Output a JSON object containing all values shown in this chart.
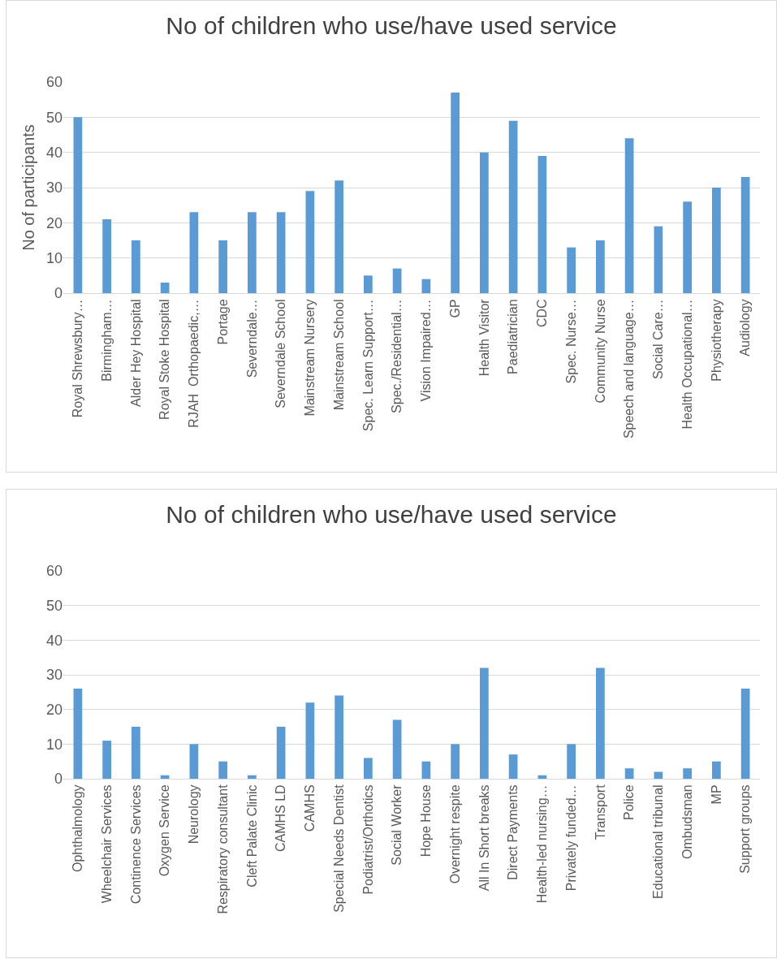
{
  "chart_data": [
    {
      "type": "bar",
      "title": "No of children who use/have used service",
      "ylabel": "No of participants",
      "categories": [
        "Royal Shrewsbury…",
        "Birmingham…",
        "Alder Hey Hospital",
        "Royal Stoke Hospital",
        "RJAH  Orthopaedic,…",
        "Portage",
        "Severndale…",
        "Severndale School",
        "Mainstream Nursery",
        "Mainstream School",
        "Spec. Learn Support…",
        "Spec./Residential…",
        "Vision Impaired…",
        "GP",
        "Health Visitor",
        "Paediatrician",
        "CDC",
        "Spec. Nurse…",
        "Community Nurse",
        "Speech and language…",
        "Social Care…",
        "Health Occupational…",
        "Physiotherapy",
        "Audiology"
      ],
      "values": [
        50,
        21,
        15,
        3,
        23,
        15,
        23,
        23,
        29,
        32,
        5,
        7,
        4,
        57,
        40,
        49,
        39,
        13,
        15,
        44,
        19,
        26,
        30,
        33
      ],
      "color": "#5b9bd5",
      "ylim": [
        0,
        60
      ],
      "yticks": [
        0,
        10,
        20,
        30,
        40,
        50,
        60
      ],
      "grid": "y",
      "legend": false
    },
    {
      "type": "bar",
      "title": "No of children who use/have used service",
      "categories": [
        "Ophthalmology",
        "Wheelchair Services",
        "Continence Services",
        "Oxygen Service",
        "Neurology",
        "Respiratory consultant",
        "Cleft Palate Clinic",
        "CAMHS LD",
        "CAMHS",
        "Special Needs Dentist",
        "Podiatrist/Orthotics",
        "Social Worker",
        "Hope House",
        "Overnight respite",
        "All In Short breaks",
        "Direct Payments",
        "Health-led nursing…",
        "Privately funded…",
        "Transport",
        "Police",
        "Educational tribunal",
        "Ombudsman",
        "MP",
        "Support groups"
      ],
      "values": [
        26,
        11,
        15,
        1,
        10,
        5,
        1,
        15,
        22,
        24,
        6,
        17,
        5,
        10,
        32,
        7,
        1,
        10,
        32,
        3,
        2,
        3,
        5,
        26
      ],
      "color": "#5b9bd5",
      "ylim": [
        0,
        60
      ],
      "yticks": [
        0,
        10,
        20,
        30,
        40,
        50,
        60
      ],
      "grid": "y",
      "legend": false
    }
  ]
}
